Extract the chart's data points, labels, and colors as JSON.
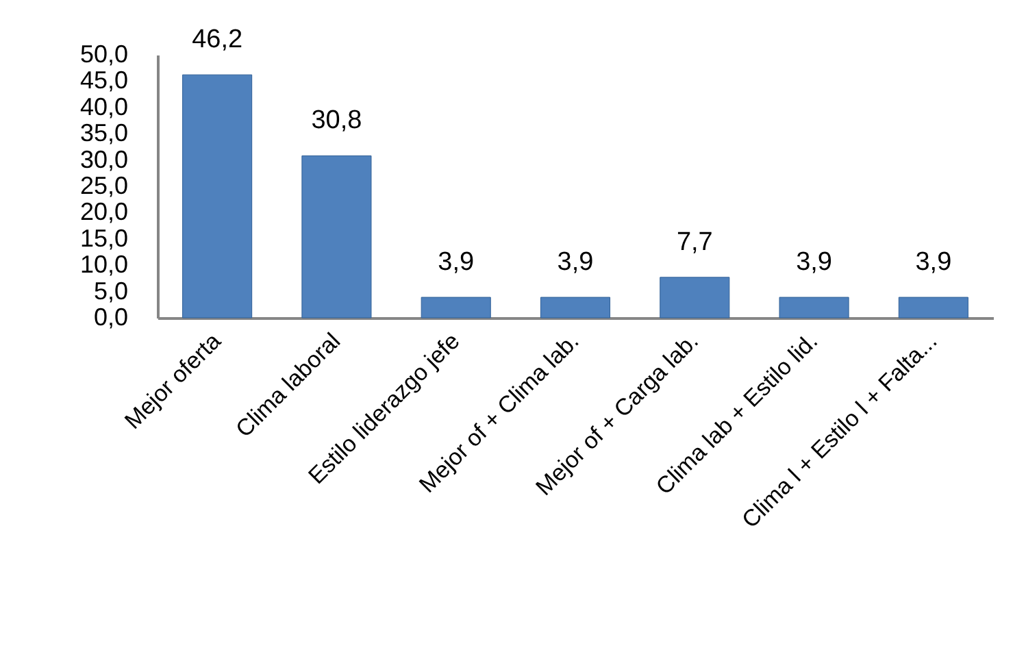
{
  "chart_data": {
    "type": "bar",
    "categories": [
      "Mejor oferta",
      "Clima laboral",
      "Estilo liderazgo jefe",
      "Mejor of + Clima lab.",
      "Mejor of + Carga lab.",
      "Clima lab + Estilo lid.",
      "Clima l + Estilo l + Falta..."
    ],
    "values": [
      46.2,
      30.8,
      3.9,
      3.9,
      7.7,
      3.9,
      3.9
    ],
    "value_labels": [
      "46,2",
      "30,8",
      "3,9",
      "3,9",
      "7,7",
      "3,9",
      "3,9"
    ],
    "color": "#4f81bd",
    "ylim": [
      0,
      50
    ],
    "yticks": [
      {
        "value": 0,
        "label": "0,0"
      },
      {
        "value": 5,
        "label": "5,0"
      },
      {
        "value": 10,
        "label": "10,0"
      },
      {
        "value": 15,
        "label": "15,0"
      },
      {
        "value": 20,
        "label": "20,0"
      },
      {
        "value": 25,
        "label": "25,0"
      },
      {
        "value": 30,
        "label": "30,0"
      },
      {
        "value": 35,
        "label": "35,0"
      },
      {
        "value": 40,
        "label": "40,0"
      },
      {
        "value": 45,
        "label": "45,0"
      },
      {
        "value": 50,
        "label": "50,0"
      }
    ],
    "grid": false
  }
}
